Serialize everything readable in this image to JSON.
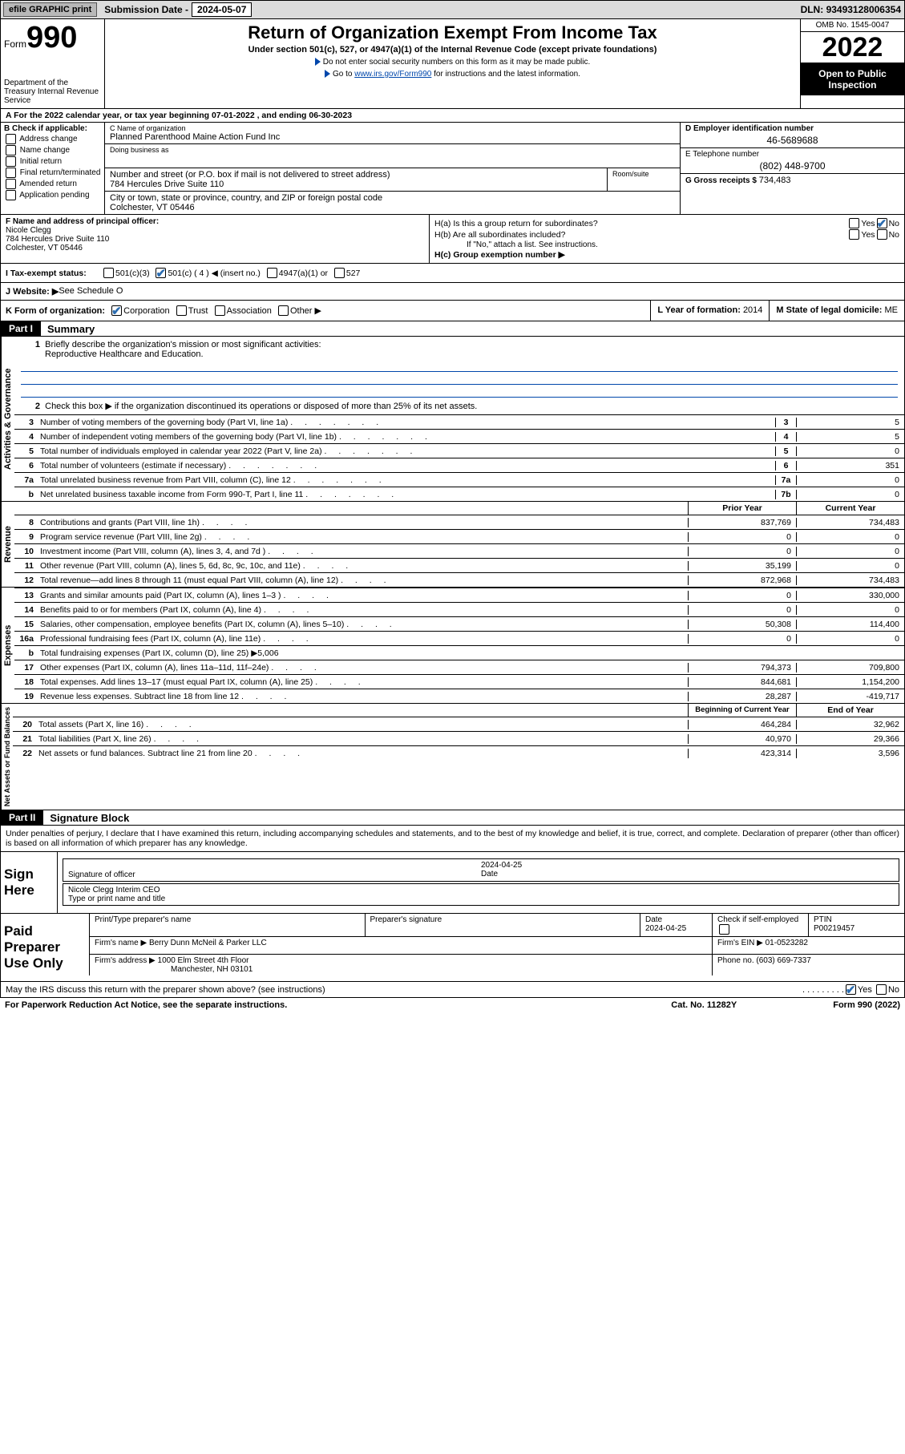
{
  "topbar": {
    "efile": "efile GRAPHIC print",
    "submission_label": "Submission Date - ",
    "submission_date": "2024-05-07",
    "dln_label": "DLN: ",
    "dln": "93493128006354"
  },
  "header": {
    "form_word": "Form",
    "form_num": "990",
    "dept": "Department of the Treasury\nInternal Revenue Service",
    "title": "Return of Organization Exempt From Income Tax",
    "sub": "Under section 501(c), 527, or 4947(a)(1) of the Internal Revenue Code (except private foundations)",
    "note1": "Do not enter social security numbers on this form as it may be made public.",
    "note2_pre": "Go to ",
    "note2_link": "www.irs.gov/Form990",
    "note2_post": " for instructions and the latest information.",
    "omb": "OMB No. 1545-0047",
    "year": "2022",
    "inspection": "Open to Public Inspection"
  },
  "sectionA": {
    "tax_year": "For the 2022 calendar year, or tax year beginning 07-01-2022    , and ending 06-30-2023",
    "check_label": "B Check if applicable:",
    "checks": [
      "Address change",
      "Name change",
      "Initial return",
      "Final return/terminated",
      "Amended return",
      "Application pending"
    ],
    "c_name_label": "C Name of organization",
    "c_name": "Planned Parenthood Maine Action Fund Inc",
    "dba_label": "Doing business as",
    "dba": "",
    "addr_label": "Number and street (or P.O. box if mail is not delivered to street address)",
    "addr": "784 Hercules Drive Suite 110",
    "room_label": "Room/suite",
    "city_label": "City or town, state or province, country, and ZIP or foreign postal code",
    "city": "Colchester, VT  05446",
    "d_ein_label": "D Employer identification number",
    "d_ein": "46-5689688",
    "e_tel_label": "E Telephone number",
    "e_tel": "(802) 448-9700",
    "g_gross_label": "G Gross receipts $ ",
    "g_gross": "734,483"
  },
  "principal": {
    "f_label": "F  Name and address of principal officer:",
    "f_name": "Nicole Clegg",
    "f_addr": "784 Hercules Drive Suite 110",
    "f_city": "Colchester, VT  05446",
    "ha": "H(a)  Is this a group return for subordinates?",
    "hb": "H(b)  Are all subordinates included?",
    "hb_note": "If \"No,\" attach a list. See instructions.",
    "hc": "H(c)  Group exemption number ▶",
    "yes": "Yes",
    "no": "No"
  },
  "status": {
    "i_label": "I     Tax-exempt status:",
    "opt1": "501(c)(3)",
    "opt2": "501(c) ( 4 ) ◀ (insert no.)",
    "opt3": "4947(a)(1) or",
    "opt4": "527",
    "j_label": "J     Website: ▶",
    "j_val": " See Schedule O"
  },
  "korg": {
    "k_label": "K Form of organization:",
    "opts": [
      "Corporation",
      "Trust",
      "Association",
      "Other ▶"
    ],
    "l_label": "L Year of formation: ",
    "l_val": "2014",
    "m_label": "M State of legal domicile: ",
    "m_val": "ME"
  },
  "part1": {
    "header": "Part I",
    "label": "Summary"
  },
  "summary": {
    "vert_labels": [
      "Activities & Governance",
      "Revenue",
      "Expenses",
      "Net Assets or Fund Balances"
    ],
    "q1": "Briefly describe the organization's mission or most significant activities:",
    "q1_ans": "Reproductive Healthcare and Education.",
    "q2": "Check this box ▶      if the organization discontinued its operations or disposed of more than 25% of its net assets.",
    "lines_gov": [
      {
        "n": "3",
        "t": "Number of voting members of the governing body (Part VI, line 1a)",
        "c": "3",
        "v": "5"
      },
      {
        "n": "4",
        "t": "Number of independent voting members of the governing body (Part VI, line 1b)",
        "c": "4",
        "v": "5"
      },
      {
        "n": "5",
        "t": "Total number of individuals employed in calendar year 2022 (Part V, line 2a)",
        "c": "5",
        "v": "0"
      },
      {
        "n": "6",
        "t": "Total number of volunteers (estimate if necessary)",
        "c": "6",
        "v": "351"
      },
      {
        "n": "7a",
        "t": "Total unrelated business revenue from Part VIII, column (C), line 12",
        "c": "7a",
        "v": "0"
      },
      {
        "n": "b",
        "t": "Net unrelated business taxable income from Form 990-T, Part I, line 11",
        "c": "7b",
        "v": "0"
      }
    ],
    "col_head_prior": "Prior Year",
    "col_head_curr": "Current Year",
    "col_head_beg": "Beginning of Current Year",
    "col_head_end": "End of Year",
    "lines_rev": [
      {
        "n": "8",
        "t": "Contributions and grants (Part VIII, line 1h)",
        "p": "837,769",
        "c": "734,483"
      },
      {
        "n": "9",
        "t": "Program service revenue (Part VIII, line 2g)",
        "p": "0",
        "c": "0"
      },
      {
        "n": "10",
        "t": "Investment income (Part VIII, column (A), lines 3, 4, and 7d )",
        "p": "0",
        "c": "0"
      },
      {
        "n": "11",
        "t": "Other revenue (Part VIII, column (A), lines 5, 6d, 8c, 9c, 10c, and 11e)",
        "p": "35,199",
        "c": "0"
      },
      {
        "n": "12",
        "t": "Total revenue—add lines 8 through 11 (must equal Part VIII, column (A), line 12)",
        "p": "872,968",
        "c": "734,483"
      }
    ],
    "lines_exp": [
      {
        "n": "13",
        "t": "Grants and similar amounts paid (Part IX, column (A), lines 1–3 )",
        "p": "0",
        "c": "330,000"
      },
      {
        "n": "14",
        "t": "Benefits paid to or for members (Part IX, column (A), line 4)",
        "p": "0",
        "c": "0"
      },
      {
        "n": "15",
        "t": "Salaries, other compensation, employee benefits (Part IX, column (A), lines 5–10)",
        "p": "50,308",
        "c": "114,400"
      },
      {
        "n": "16a",
        "t": "Professional fundraising fees (Part IX, column (A), line 11e)",
        "p": "0",
        "c": "0"
      }
    ],
    "line_16b": {
      "n": "b",
      "t": "Total fundraising expenses (Part IX, column (D), line 25) ▶5,006"
    },
    "lines_exp2": [
      {
        "n": "17",
        "t": "Other expenses (Part IX, column (A), lines 11a–11d, 11f–24e)",
        "p": "794,373",
        "c": "709,800"
      },
      {
        "n": "18",
        "t": "Total expenses. Add lines 13–17 (must equal Part IX, column (A), line 25)",
        "p": "844,681",
        "c": "1,154,200"
      },
      {
        "n": "19",
        "t": "Revenue less expenses. Subtract line 18 from line 12",
        "p": "28,287",
        "c": "-419,717"
      }
    ],
    "lines_net": [
      {
        "n": "20",
        "t": "Total assets (Part X, line 16)",
        "p": "464,284",
        "c": "32,962"
      },
      {
        "n": "21",
        "t": "Total liabilities (Part X, line 26)",
        "p": "40,970",
        "c": "29,366"
      },
      {
        "n": "22",
        "t": "Net assets or fund balances. Subtract line 21 from line 20",
        "p": "423,314",
        "c": "3,596"
      }
    ]
  },
  "part2": {
    "header": "Part II",
    "label": "Signature Block",
    "penalty": "Under penalties of perjury, I declare that I have examined this return, including accompanying schedules and statements, and to the best of my knowledge and belief, it is true, correct, and complete. Declaration of preparer (other than officer) is based on all information of which preparer has any knowledge.",
    "sign_here": "Sign Here",
    "sig_officer": "Signature of officer",
    "sig_date": "2024-04-25",
    "date_lbl": "Date",
    "sig_name": "Nicole Clegg  Interim CEO",
    "type_name": "Type or print name and title",
    "paid_prep": "Paid Preparer Use Only",
    "prep_name_lbl": "Print/Type preparer's name",
    "prep_sig_lbl": "Preparer's signature",
    "prep_date_lbl": "Date",
    "prep_date": "2024-04-25",
    "check_self": "Check        if self-employed",
    "ptin_lbl": "PTIN",
    "ptin": "P00219457",
    "firm_name_lbl": "Firm's name     ▶ ",
    "firm_name": "Berry Dunn McNeil & Parker LLC",
    "firm_ein_lbl": "Firm's EIN ▶ ",
    "firm_ein": "01-0523282",
    "firm_addr_lbl": "Firm's address ▶ ",
    "firm_addr": "1000 Elm Street 4th Floor",
    "firm_city": "Manchester, NH  03101",
    "phone_lbl": "Phone no. ",
    "phone": "(603) 669-7337",
    "discuss": "May the IRS discuss this return with the preparer shown above? (see instructions)",
    "paperwork": "For Paperwork Reduction Act Notice, see the separate instructions.",
    "cat": "Cat. No. 11282Y",
    "form_foot": "Form 990 (2022)"
  },
  "colors": {
    "link": "#0047ab",
    "check_green": "#0a7a3a",
    "check_blue": "#2b6cb0",
    "grey_bg": "#cccccc",
    "topbar_bg": "#dcdcdc"
  }
}
